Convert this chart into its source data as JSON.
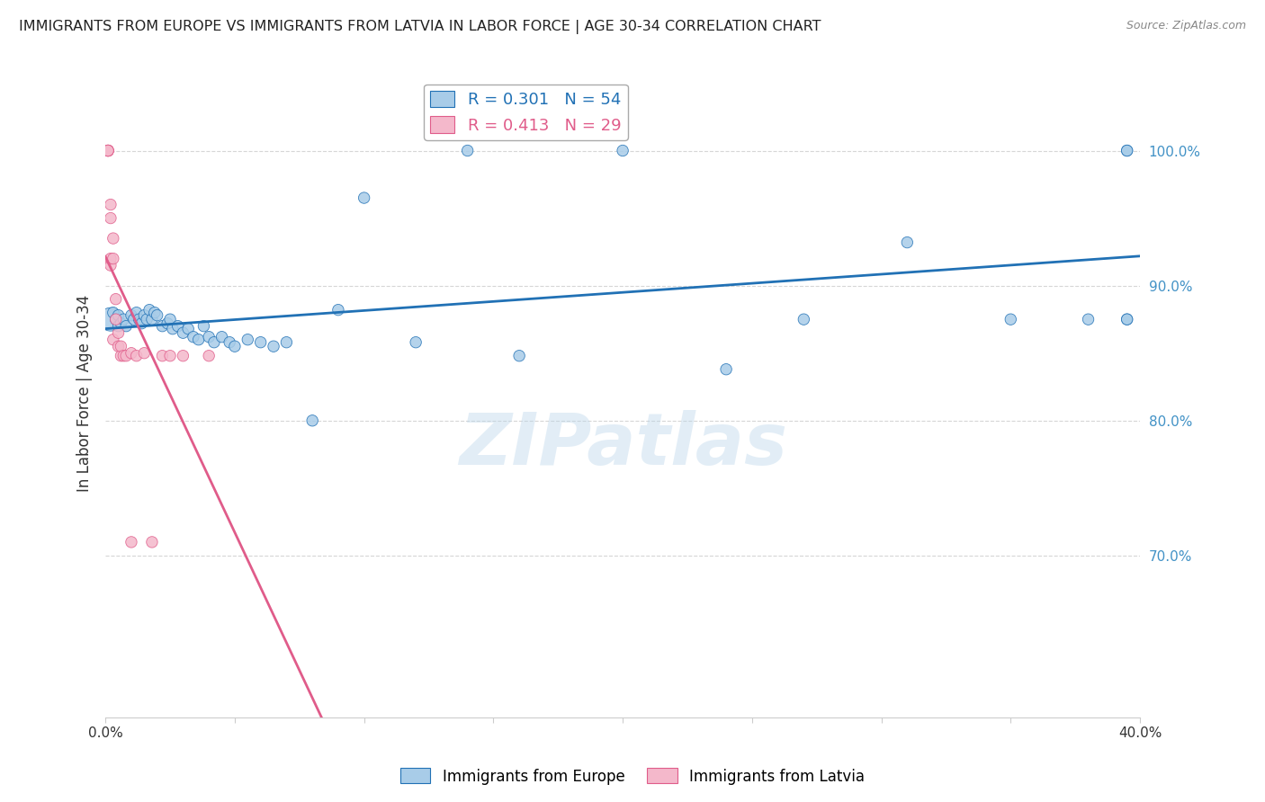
{
  "title": "IMMIGRANTS FROM EUROPE VS IMMIGRANTS FROM LATVIA IN LABOR FORCE | AGE 30-34 CORRELATION CHART",
  "source": "Source: ZipAtlas.com",
  "ylabel": "In Labor Force | Age 30-34",
  "watermark": "ZIPatlas",
  "x_min": 0.0,
  "x_max": 0.4,
  "y_min": 0.58,
  "y_max": 1.06,
  "blue_R": 0.301,
  "blue_N": 54,
  "pink_R": 0.413,
  "pink_N": 29,
  "legend_blue_label": "Immigrants from Europe",
  "legend_pink_label": "Immigrants from Latvia",
  "blue_color": "#a8cce8",
  "pink_color": "#f4b8cb",
  "blue_line_color": "#2171b5",
  "pink_line_color": "#e05c8a",
  "grid_color": "#cccccc",
  "right_axis_color": "#4292c6",
  "y_ticks_right": [
    1.0,
    0.9,
    0.8,
    0.7
  ],
  "y_tick_labels_right": [
    "100.0%",
    "90.0%",
    "80.0%",
    "70.0%"
  ],
  "blue_scatter_x": [
    0.002,
    0.003,
    0.004,
    0.005,
    0.005,
    0.006,
    0.007,
    0.008,
    0.01,
    0.011,
    0.012,
    0.013,
    0.014,
    0.015,
    0.016,
    0.017,
    0.018,
    0.019,
    0.02,
    0.022,
    0.024,
    0.025,
    0.026,
    0.028,
    0.03,
    0.032,
    0.034,
    0.036,
    0.038,
    0.04,
    0.042,
    0.045,
    0.048,
    0.05,
    0.055,
    0.06,
    0.065,
    0.07,
    0.08,
    0.09,
    0.1,
    0.12,
    0.14,
    0.16,
    0.2,
    0.24,
    0.27,
    0.31,
    0.35,
    0.38,
    0.395,
    0.395,
    0.395,
    0.395
  ],
  "blue_scatter_y": [
    0.875,
    0.88,
    0.875,
    0.87,
    0.878,
    0.872,
    0.875,
    0.87,
    0.878,
    0.875,
    0.88,
    0.875,
    0.872,
    0.878,
    0.875,
    0.882,
    0.875,
    0.88,
    0.878,
    0.87,
    0.872,
    0.875,
    0.868,
    0.87,
    0.865,
    0.868,
    0.862,
    0.86,
    0.87,
    0.862,
    0.858,
    0.862,
    0.858,
    0.855,
    0.86,
    0.858,
    0.855,
    0.858,
    0.8,
    0.882,
    0.965,
    0.858,
    1.0,
    0.848,
    1.0,
    0.838,
    0.875,
    0.932,
    0.875,
    0.875,
    0.875,
    0.875,
    1.0,
    1.0
  ],
  "blue_scatter_size": [
    350,
    80,
    80,
    80,
    80,
    80,
    80,
    80,
    80,
    80,
    80,
    80,
    80,
    80,
    80,
    80,
    80,
    80,
    80,
    80,
    80,
    80,
    80,
    80,
    80,
    80,
    80,
    80,
    80,
    80,
    80,
    80,
    80,
    80,
    80,
    80,
    80,
    80,
    80,
    80,
    80,
    80,
    80,
    80,
    80,
    80,
    80,
    80,
    80,
    80,
    80,
    80,
    80,
    80
  ],
  "pink_scatter_x": [
    0.001,
    0.001,
    0.001,
    0.001,
    0.001,
    0.002,
    0.002,
    0.002,
    0.002,
    0.003,
    0.003,
    0.003,
    0.004,
    0.004,
    0.005,
    0.005,
    0.006,
    0.006,
    0.007,
    0.008,
    0.01,
    0.01,
    0.012,
    0.015,
    0.018,
    0.022,
    0.025,
    0.03,
    0.04
  ],
  "pink_scatter_y": [
    1.0,
    1.0,
    1.0,
    1.0,
    1.0,
    0.96,
    0.95,
    0.915,
    0.92,
    0.935,
    0.92,
    0.86,
    0.89,
    0.875,
    0.865,
    0.855,
    0.848,
    0.855,
    0.848,
    0.848,
    0.85,
    0.71,
    0.848,
    0.85,
    0.71,
    0.848,
    0.848,
    0.848,
    0.848
  ],
  "pink_scatter_size": [
    80,
    80,
    80,
    80,
    80,
    80,
    80,
    80,
    80,
    80,
    80,
    80,
    80,
    80,
    80,
    80,
    80,
    80,
    80,
    80,
    80,
    80,
    80,
    80,
    80,
    80,
    80,
    80,
    80
  ]
}
